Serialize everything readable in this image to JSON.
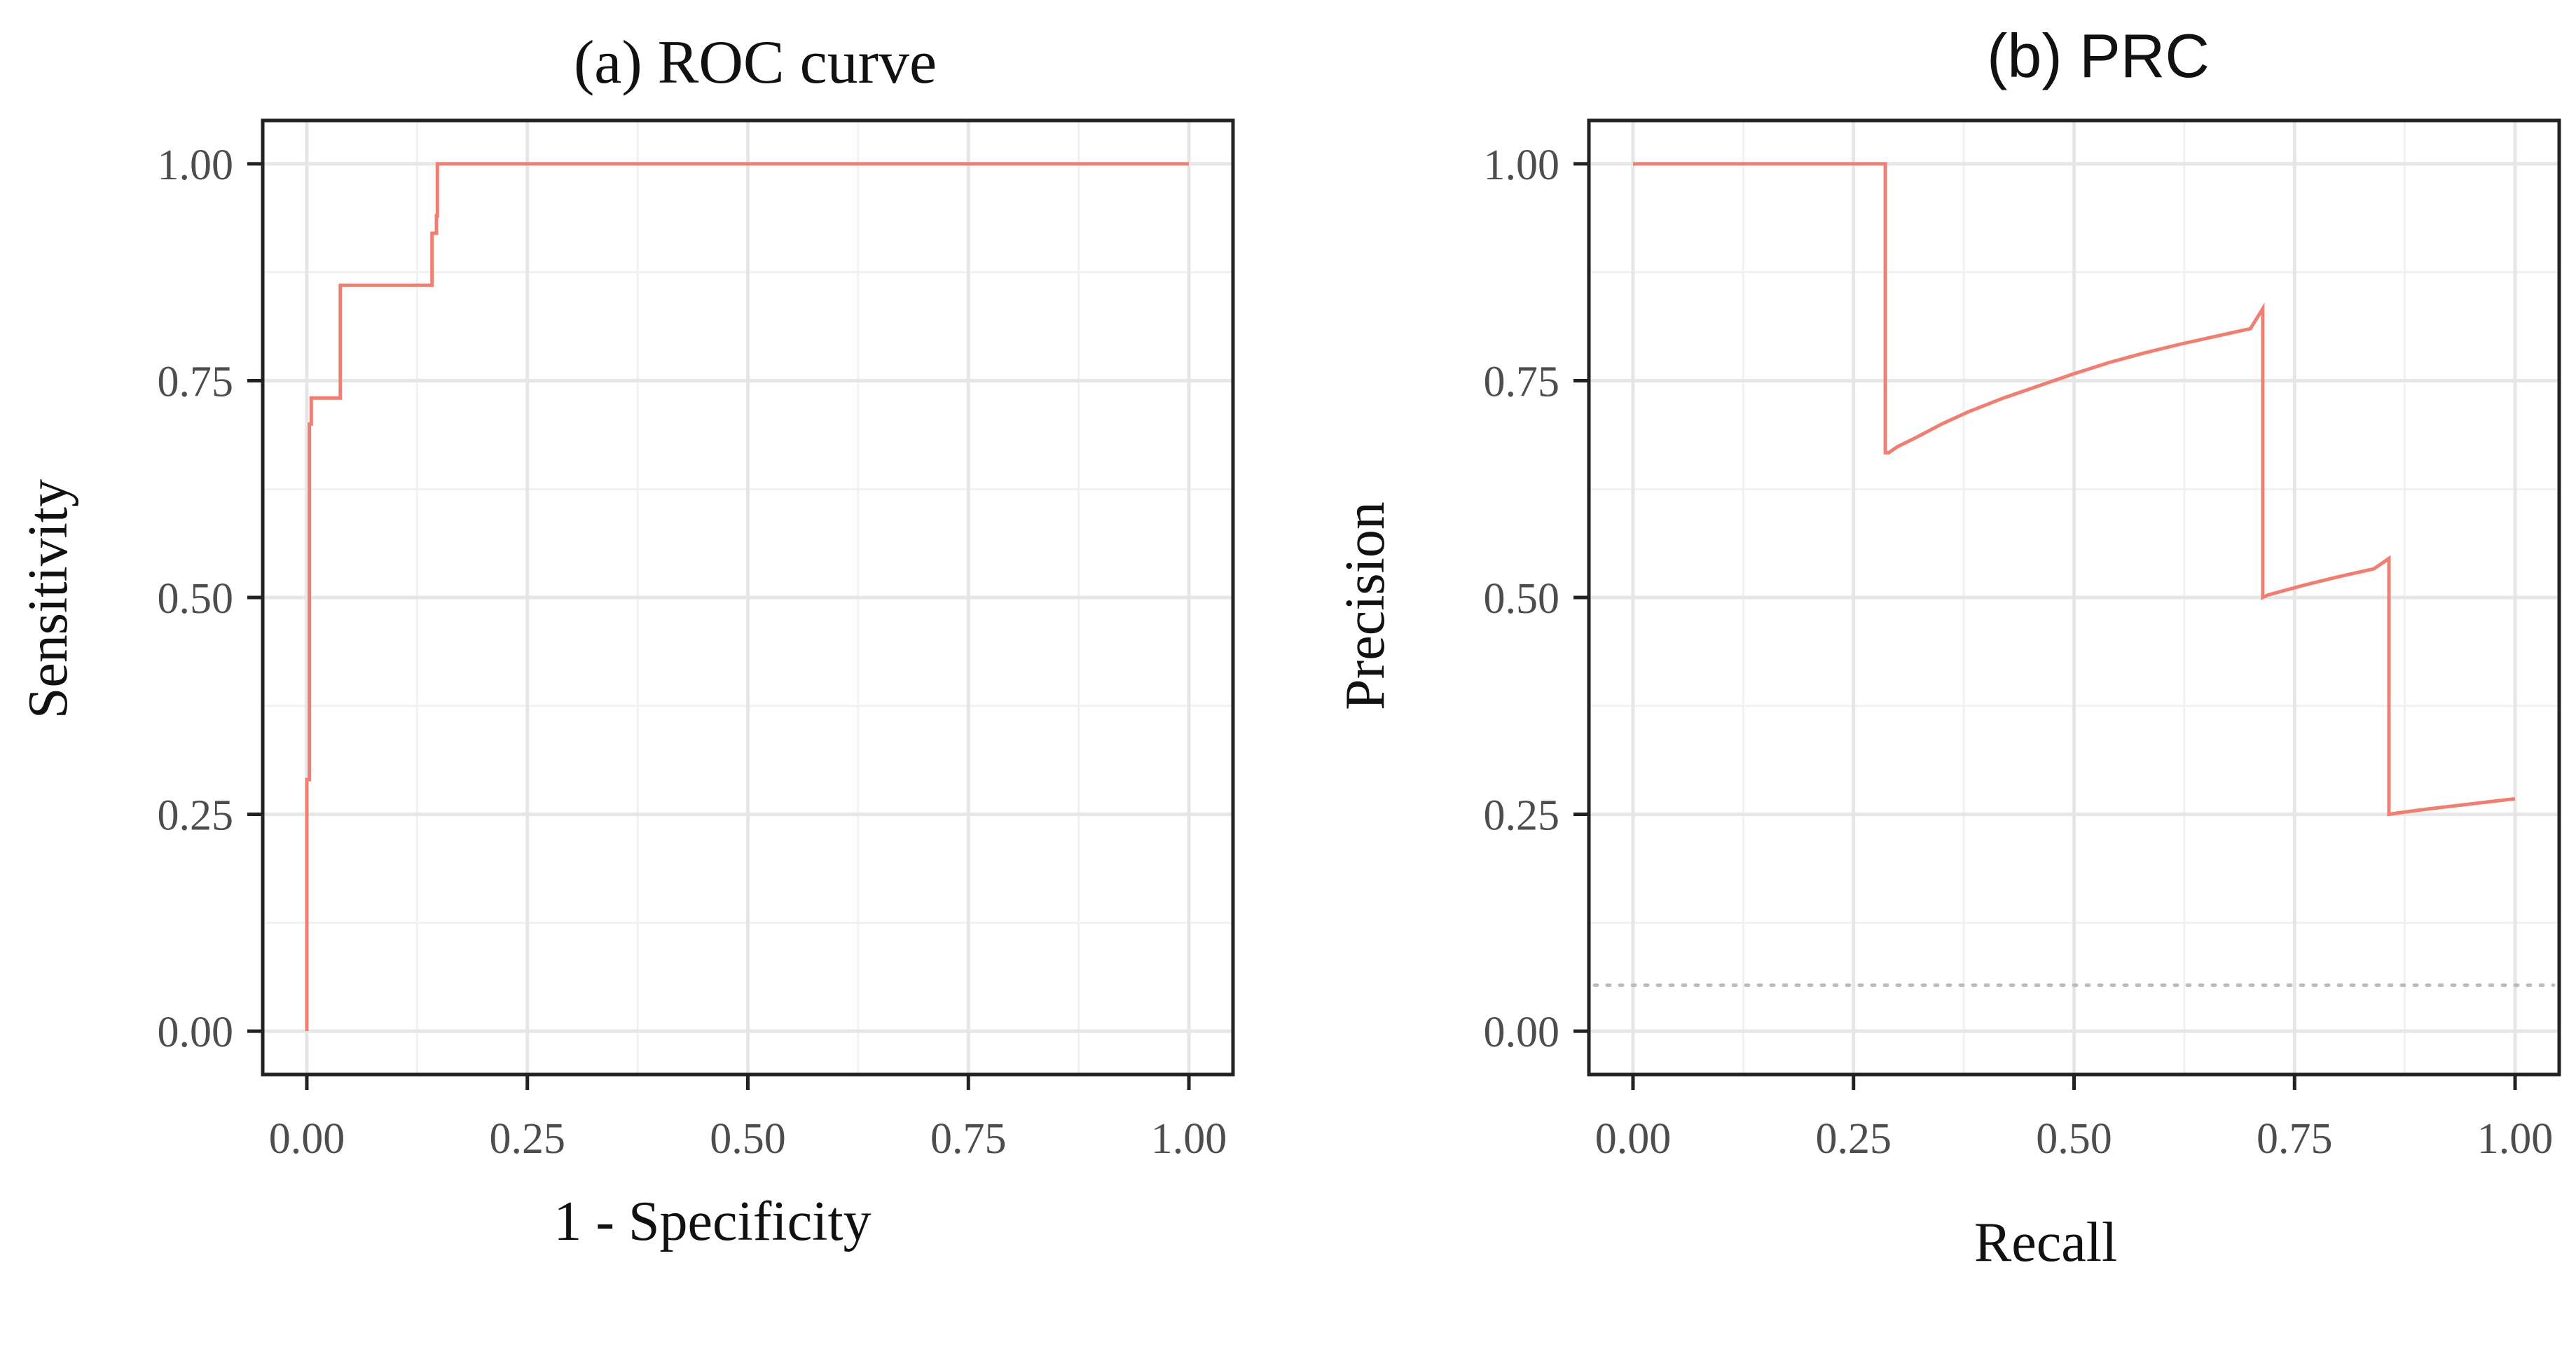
{
  "chart_data": [
    {
      "id": "roc",
      "type": "line",
      "title": "(a) ROC curve",
      "xlabel": "1 - Specificity",
      "ylabel": "Sensitivity",
      "xlim": [
        -0.05,
        1.05
      ],
      "ylim": [
        -0.05,
        1.05
      ],
      "grid": true,
      "xticks": [
        0,
        0.25,
        0.5,
        0.75,
        1.0
      ],
      "yticks": [
        0,
        0.25,
        0.5,
        0.75,
        1.0
      ],
      "xtick_labels": [
        "0.00",
        "0.25",
        "0.50",
        "0.75",
        "1.00"
      ],
      "ytick_labels": [
        "0.00",
        "0.25",
        "0.50",
        "0.75",
        "1.00"
      ],
      "series": [
        {
          "name": "ROC",
          "color": "#f07f73",
          "x": [
            0.0,
            0.0,
            0.003,
            0.003,
            0.005,
            0.005,
            0.038,
            0.038,
            0.142,
            0.142,
            0.147,
            0.147,
            0.148,
            0.148,
            1.0
          ],
          "y": [
            0.0,
            0.29,
            0.29,
            0.7,
            0.7,
            0.73,
            0.73,
            0.86,
            0.86,
            0.92,
            0.92,
            0.94,
            0.94,
            1.0,
            1.0
          ]
        }
      ]
    },
    {
      "id": "prc",
      "type": "line",
      "title": "(b) PRC",
      "xlabel": "Recall",
      "ylabel": "Precision",
      "xlim": [
        -0.05,
        1.05
      ],
      "ylim": [
        -0.05,
        1.05
      ],
      "grid": true,
      "xticks": [
        0,
        0.25,
        0.5,
        0.75,
        1.0
      ],
      "yticks": [
        0,
        0.25,
        0.5,
        0.75,
        1.0
      ],
      "xtick_labels": [
        "0.00",
        "0.25",
        "0.50",
        "0.75",
        "1.00"
      ],
      "ytick_labels": [
        "0.00",
        "0.25",
        "0.50",
        "0.75",
        "1.00"
      ],
      "baseline": {
        "y": 0.053,
        "color": "#bdbdbd",
        "style": "dotted"
      },
      "series": [
        {
          "name": "PRC",
          "color": "#f07f73",
          "x": [
            0.0,
            0.286,
            0.286,
            0.29,
            0.3,
            0.32,
            0.35,
            0.38,
            0.42,
            0.46,
            0.5,
            0.54,
            0.58,
            0.62,
            0.66,
            0.7,
            0.714,
            0.714,
            0.72,
            0.76,
            0.8,
            0.84,
            0.857,
            0.857,
            0.87,
            0.9,
            0.95,
            1.0
          ],
          "y": [
            1.0,
            1.0,
            0.667,
            0.667,
            0.674,
            0.684,
            0.7,
            0.714,
            0.73,
            0.744,
            0.758,
            0.771,
            0.782,
            0.792,
            0.801,
            0.81,
            0.833,
            0.5,
            0.503,
            0.514,
            0.524,
            0.533,
            0.545,
            0.25,
            0.252,
            0.256,
            0.262,
            0.268
          ]
        }
      ]
    }
  ]
}
